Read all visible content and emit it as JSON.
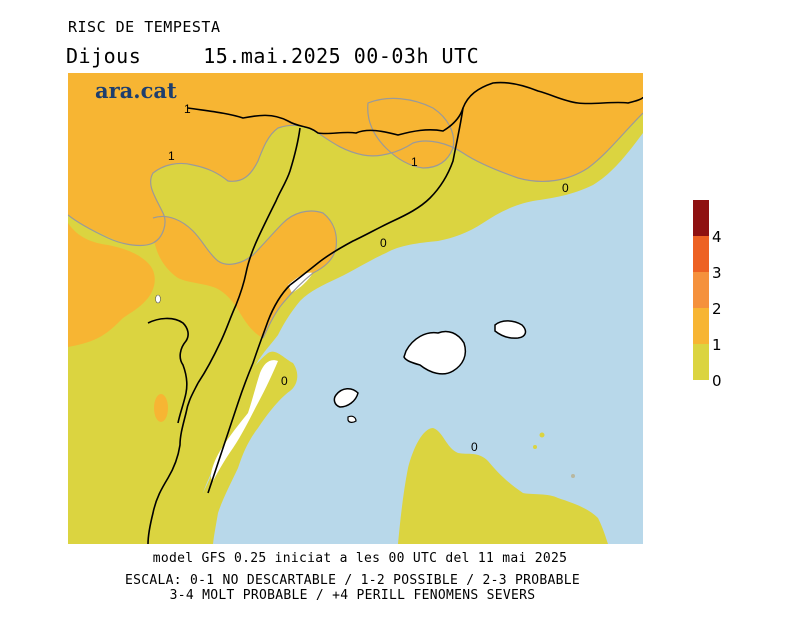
{
  "header": {
    "title": "RISC DE TEMPESTA",
    "day": "Dijous",
    "date_range": "15.mai.2025 00-03h UTC"
  },
  "logo": {
    "text": "ara.cat"
  },
  "map": {
    "contour_labels": [
      "1",
      "1",
      "1",
      "0",
      "0",
      "0",
      "0"
    ],
    "colors": {
      "sea": "#b8d8ea",
      "level_0_1": "#dbd440",
      "level_1_2": "#f7b533",
      "level_2_3": "#f5913c",
      "level_3_4": "#ed6123",
      "level_4": "#8f1111",
      "no_data": "#ffffff"
    }
  },
  "legend": {
    "labels": [
      "4",
      "3",
      "2",
      "1",
      "0"
    ]
  },
  "footer": {
    "model": "model GFS 0.25 iniciat a les 00 UTC del 11 mai 2025",
    "scale_line1": "ESCALA: 0-1 NO DESCARTABLE / 1-2 POSSIBLE / 2-3 PROBABLE",
    "scale_line2": "3-4 MOLT PROBABLE / +4 PERILL FENOMENS SEVERS"
  }
}
